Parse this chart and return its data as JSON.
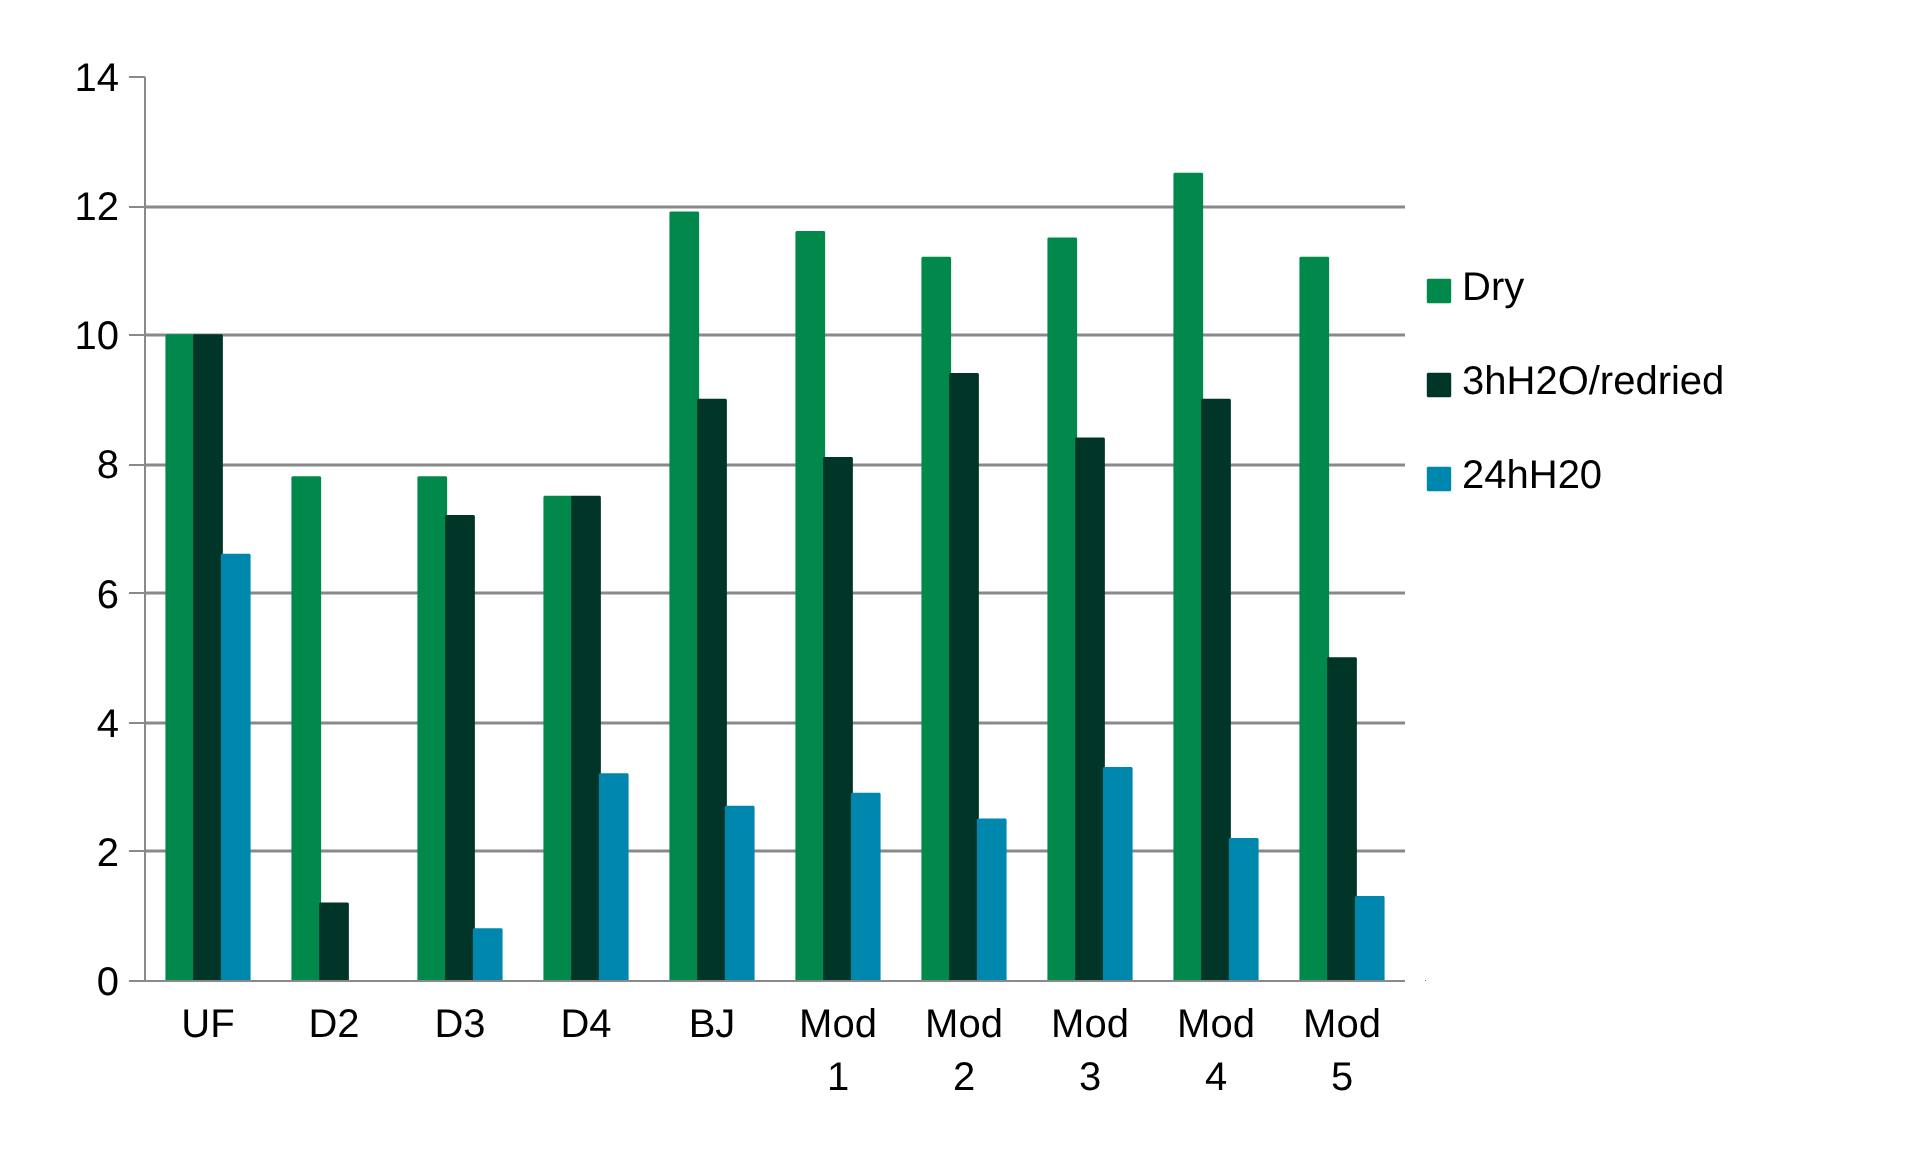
{
  "chart_data": {
    "type": "bar",
    "categories": [
      "UF",
      "D2",
      "D3",
      "D4",
      "BJ",
      "Mod 1",
      "Mod 2",
      "Mod 3",
      "Mod 4",
      "Mod 5"
    ],
    "series": [
      {
        "name": "Dry",
        "color": "#00894a",
        "values": [
          10,
          7.8,
          7.8,
          7.5,
          11.9,
          11.6,
          11.2,
          11.5,
          12.5,
          11.2
        ]
      },
      {
        "name": "3hH2O/redried",
        "color": "#003527",
        "values": [
          10,
          1.2,
          7.2,
          7.5,
          9.0,
          8.1,
          9.4,
          8.4,
          9.0,
          5.0
        ]
      },
      {
        "name": "24hH20",
        "color": "#0087ae",
        "values": [
          6.6,
          null,
          0.8,
          3.2,
          2.7,
          2.9,
          2.5,
          3.3,
          2.2,
          1.3
        ]
      }
    ],
    "ylim": [
      0,
      14
    ],
    "yticks": [
      0,
      2,
      4,
      6,
      8,
      10,
      12,
      14
    ],
    "grid": "y",
    "legend": "right"
  }
}
